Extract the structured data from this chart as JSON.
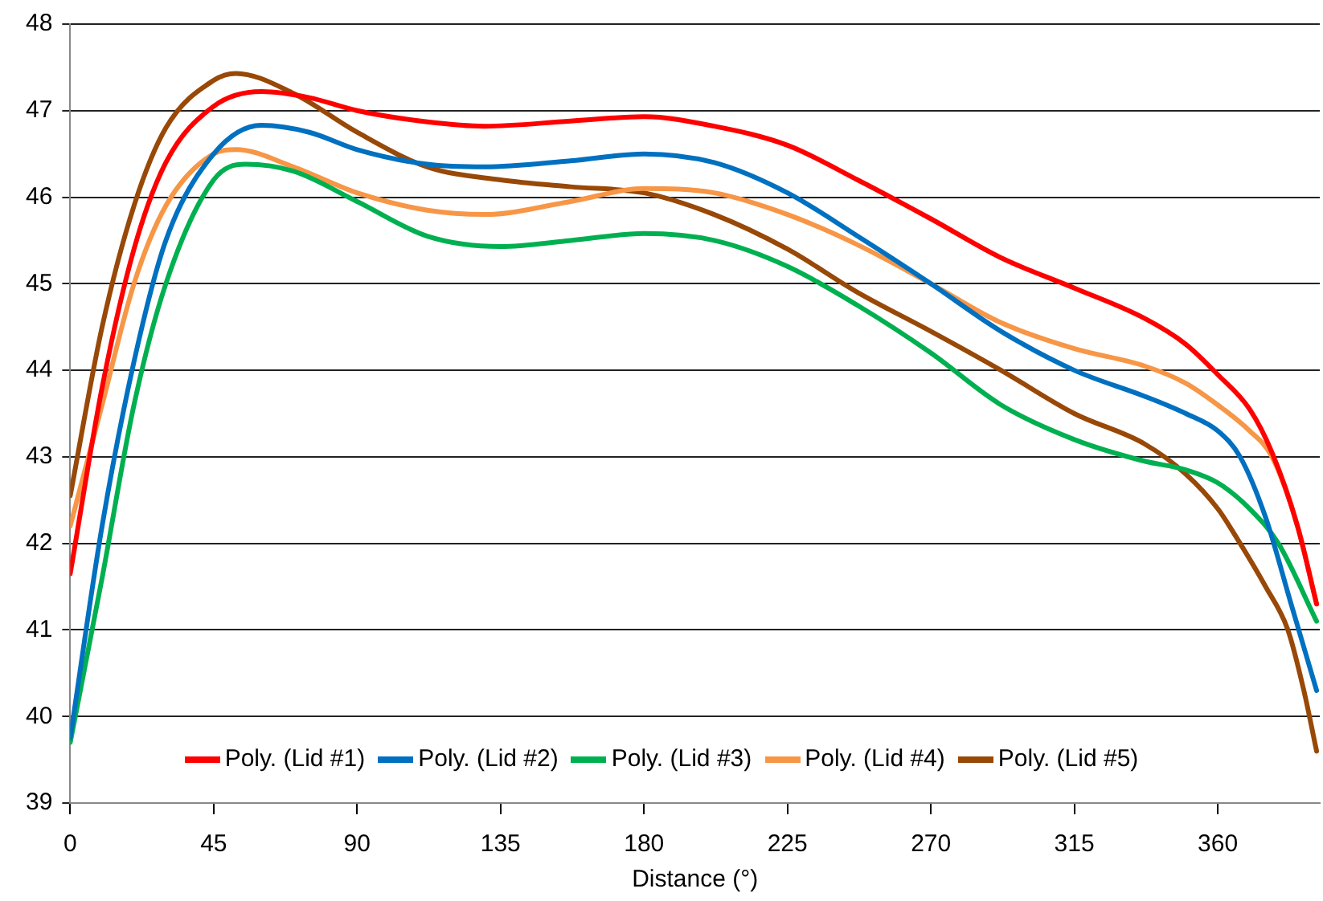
{
  "chart_data": {
    "type": "line",
    "xlabel": "Distance (°)",
    "xlim": [
      0,
      392
    ],
    "xticks": [
      0,
      45,
      90,
      135,
      180,
      225,
      270,
      315,
      360
    ],
    "ylim": [
      39,
      48
    ],
    "yticks": [
      39,
      40,
      41,
      42,
      43,
      44,
      45,
      46,
      47,
      48
    ],
    "grid": "y",
    "legend": "bottom",
    "marker": "none",
    "line_style": "solid",
    "series": [
      {
        "name": "Poly. (Lid #1)",
        "color": "#ff0000",
        "x": [
          0,
          10,
          20,
          30,
          45,
          60,
          75,
          90,
          112,
          130,
          157,
          180,
          202,
          225,
          247,
          270,
          292,
          315,
          337,
          350,
          360,
          370,
          377,
          385,
          391
        ],
        "values": [
          41.65,
          43.8,
          45.4,
          46.4,
          47.05,
          47.22,
          47.15,
          47.0,
          46.87,
          46.82,
          46.88,
          46.93,
          46.82,
          46.6,
          46.2,
          45.75,
          45.3,
          44.95,
          44.6,
          44.3,
          43.95,
          43.55,
          43.05,
          42.2,
          41.3
        ]
      },
      {
        "name": "Poly. (Lid #2)",
        "color": "#0070c0",
        "x": [
          0,
          10,
          20,
          30,
          45,
          60,
          75,
          90,
          112,
          130,
          157,
          180,
          202,
          225,
          247,
          270,
          292,
          315,
          337,
          350,
          360,
          367,
          375,
          383,
          391
        ],
        "values": [
          39.75,
          42.2,
          44.1,
          45.5,
          46.5,
          46.83,
          46.75,
          46.55,
          46.38,
          46.35,
          46.42,
          46.5,
          46.4,
          46.05,
          45.55,
          45.0,
          44.45,
          44.0,
          43.7,
          43.5,
          43.3,
          43.0,
          42.3,
          41.3,
          40.3
        ]
      },
      {
        "name": "Poly. (Lid #3)",
        "color": "#00b050",
        "x": [
          0,
          10,
          20,
          30,
          45,
          55,
          70,
          90,
          112,
          135,
          157,
          180,
          202,
          225,
          247,
          270,
          292,
          315,
          337,
          350,
          360,
          370,
          379,
          391
        ],
        "values": [
          39.7,
          41.6,
          43.6,
          45.0,
          46.2,
          46.38,
          46.3,
          45.95,
          45.55,
          45.43,
          45.5,
          45.58,
          45.5,
          45.2,
          44.75,
          44.2,
          43.6,
          43.2,
          42.95,
          42.85,
          42.7,
          42.4,
          42.0,
          41.1
        ]
      },
      {
        "name": "Poly. (Lid #4)",
        "color": "#f79646",
        "x": [
          0,
          10,
          20,
          30,
          45,
          52,
          70,
          90,
          112,
          130,
          157,
          180,
          202,
          225,
          247,
          270,
          292,
          315,
          337,
          350,
          360,
          370,
          377,
          385,
          391
        ],
        "values": [
          42.2,
          43.6,
          45.0,
          45.9,
          46.5,
          46.55,
          46.35,
          46.05,
          45.85,
          45.8,
          45.95,
          46.1,
          46.05,
          45.8,
          45.45,
          45.0,
          44.55,
          44.25,
          44.05,
          43.85,
          43.6,
          43.3,
          43.0,
          42.2,
          41.3
        ]
      },
      {
        "name": "Poly. (Lid #5)",
        "color": "#984807",
        "x": [
          0,
          10,
          20,
          30,
          45,
          52,
          70,
          90,
          112,
          135,
          157,
          180,
          202,
          225,
          247,
          270,
          292,
          315,
          337,
          350,
          360,
          367,
          375,
          382,
          387,
          391
        ],
        "values": [
          42.55,
          44.5,
          45.9,
          46.8,
          47.35,
          47.43,
          47.2,
          46.75,
          46.35,
          46.2,
          46.12,
          46.05,
          45.8,
          45.4,
          44.9,
          44.45,
          44.0,
          43.5,
          43.15,
          42.8,
          42.4,
          42.0,
          41.5,
          41.0,
          40.3,
          39.6
        ]
      }
    ]
  }
}
